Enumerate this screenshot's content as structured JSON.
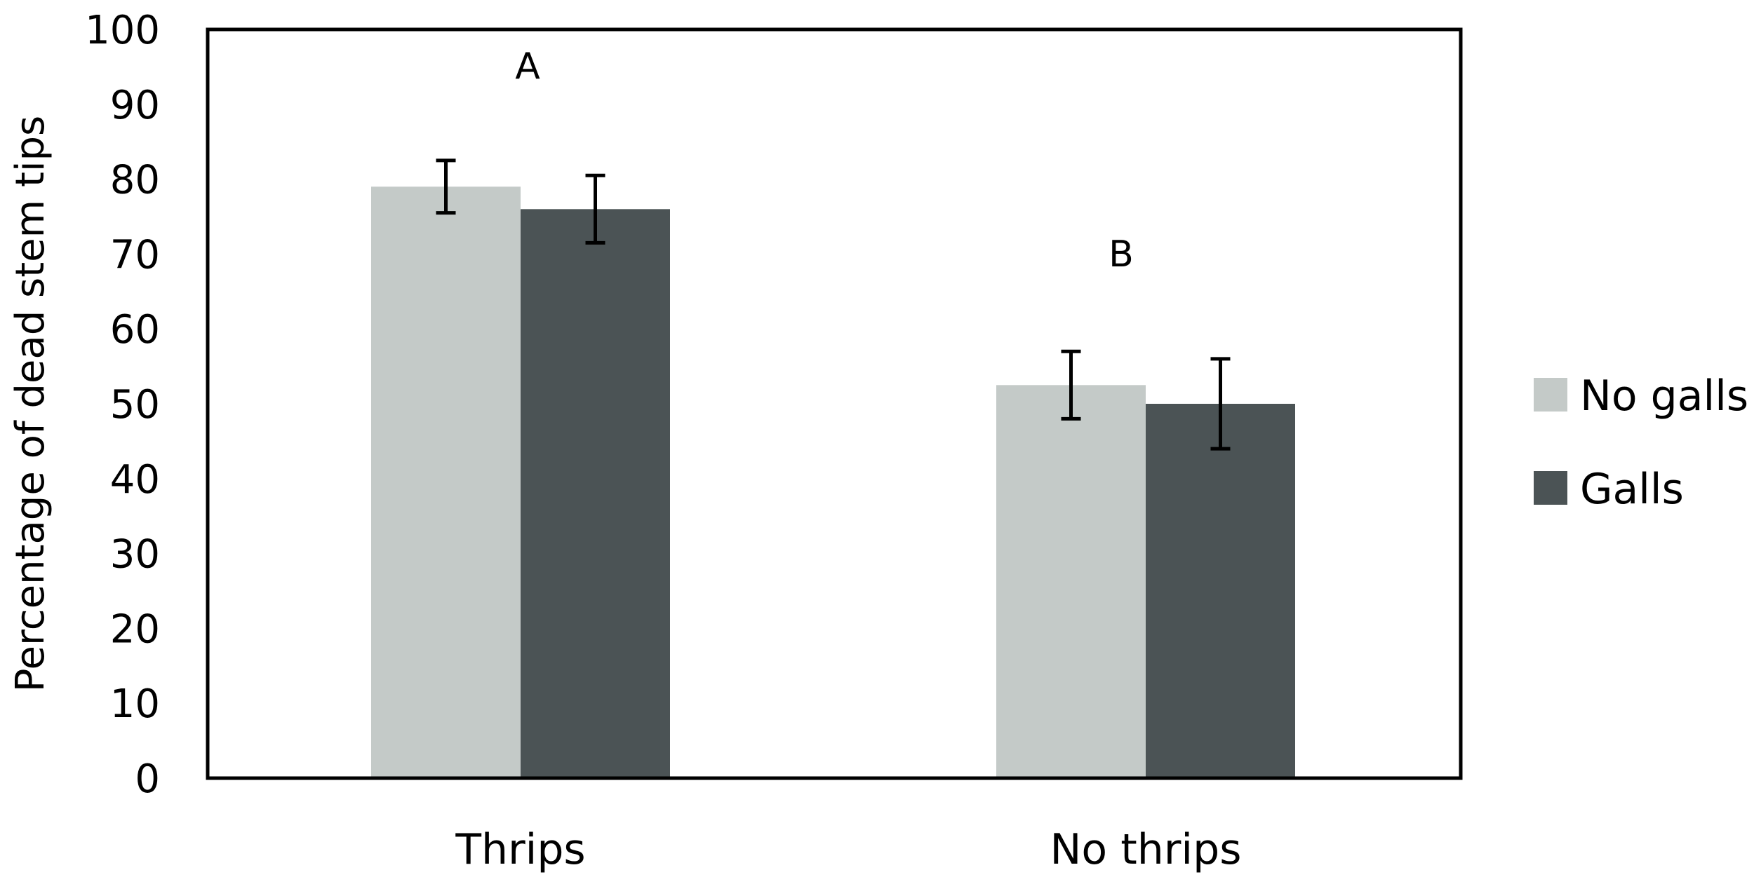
{
  "chart_data": {
    "type": "bar",
    "categories": [
      "Thrips",
      "No thrips"
    ],
    "series": [
      {
        "name": "No galls",
        "values": [
          79,
          52.5
        ],
        "error": [
          3.5,
          4.5
        ],
        "color": "#c4cac8"
      },
      {
        "name": "Galls",
        "values": [
          76,
          50
        ],
        "error": [
          4.5,
          6
        ],
        "color": "#4b5355"
      }
    ],
    "ylabel": "Percentage of dead stem tips",
    "xlabel": "",
    "ylim": [
      0,
      100
    ],
    "yticks": [
      0,
      10,
      20,
      30,
      40,
      50,
      60,
      70,
      80,
      90,
      100
    ],
    "annotations": [
      "A",
      "B"
    ],
    "legend_position": "right",
    "grid": false
  }
}
